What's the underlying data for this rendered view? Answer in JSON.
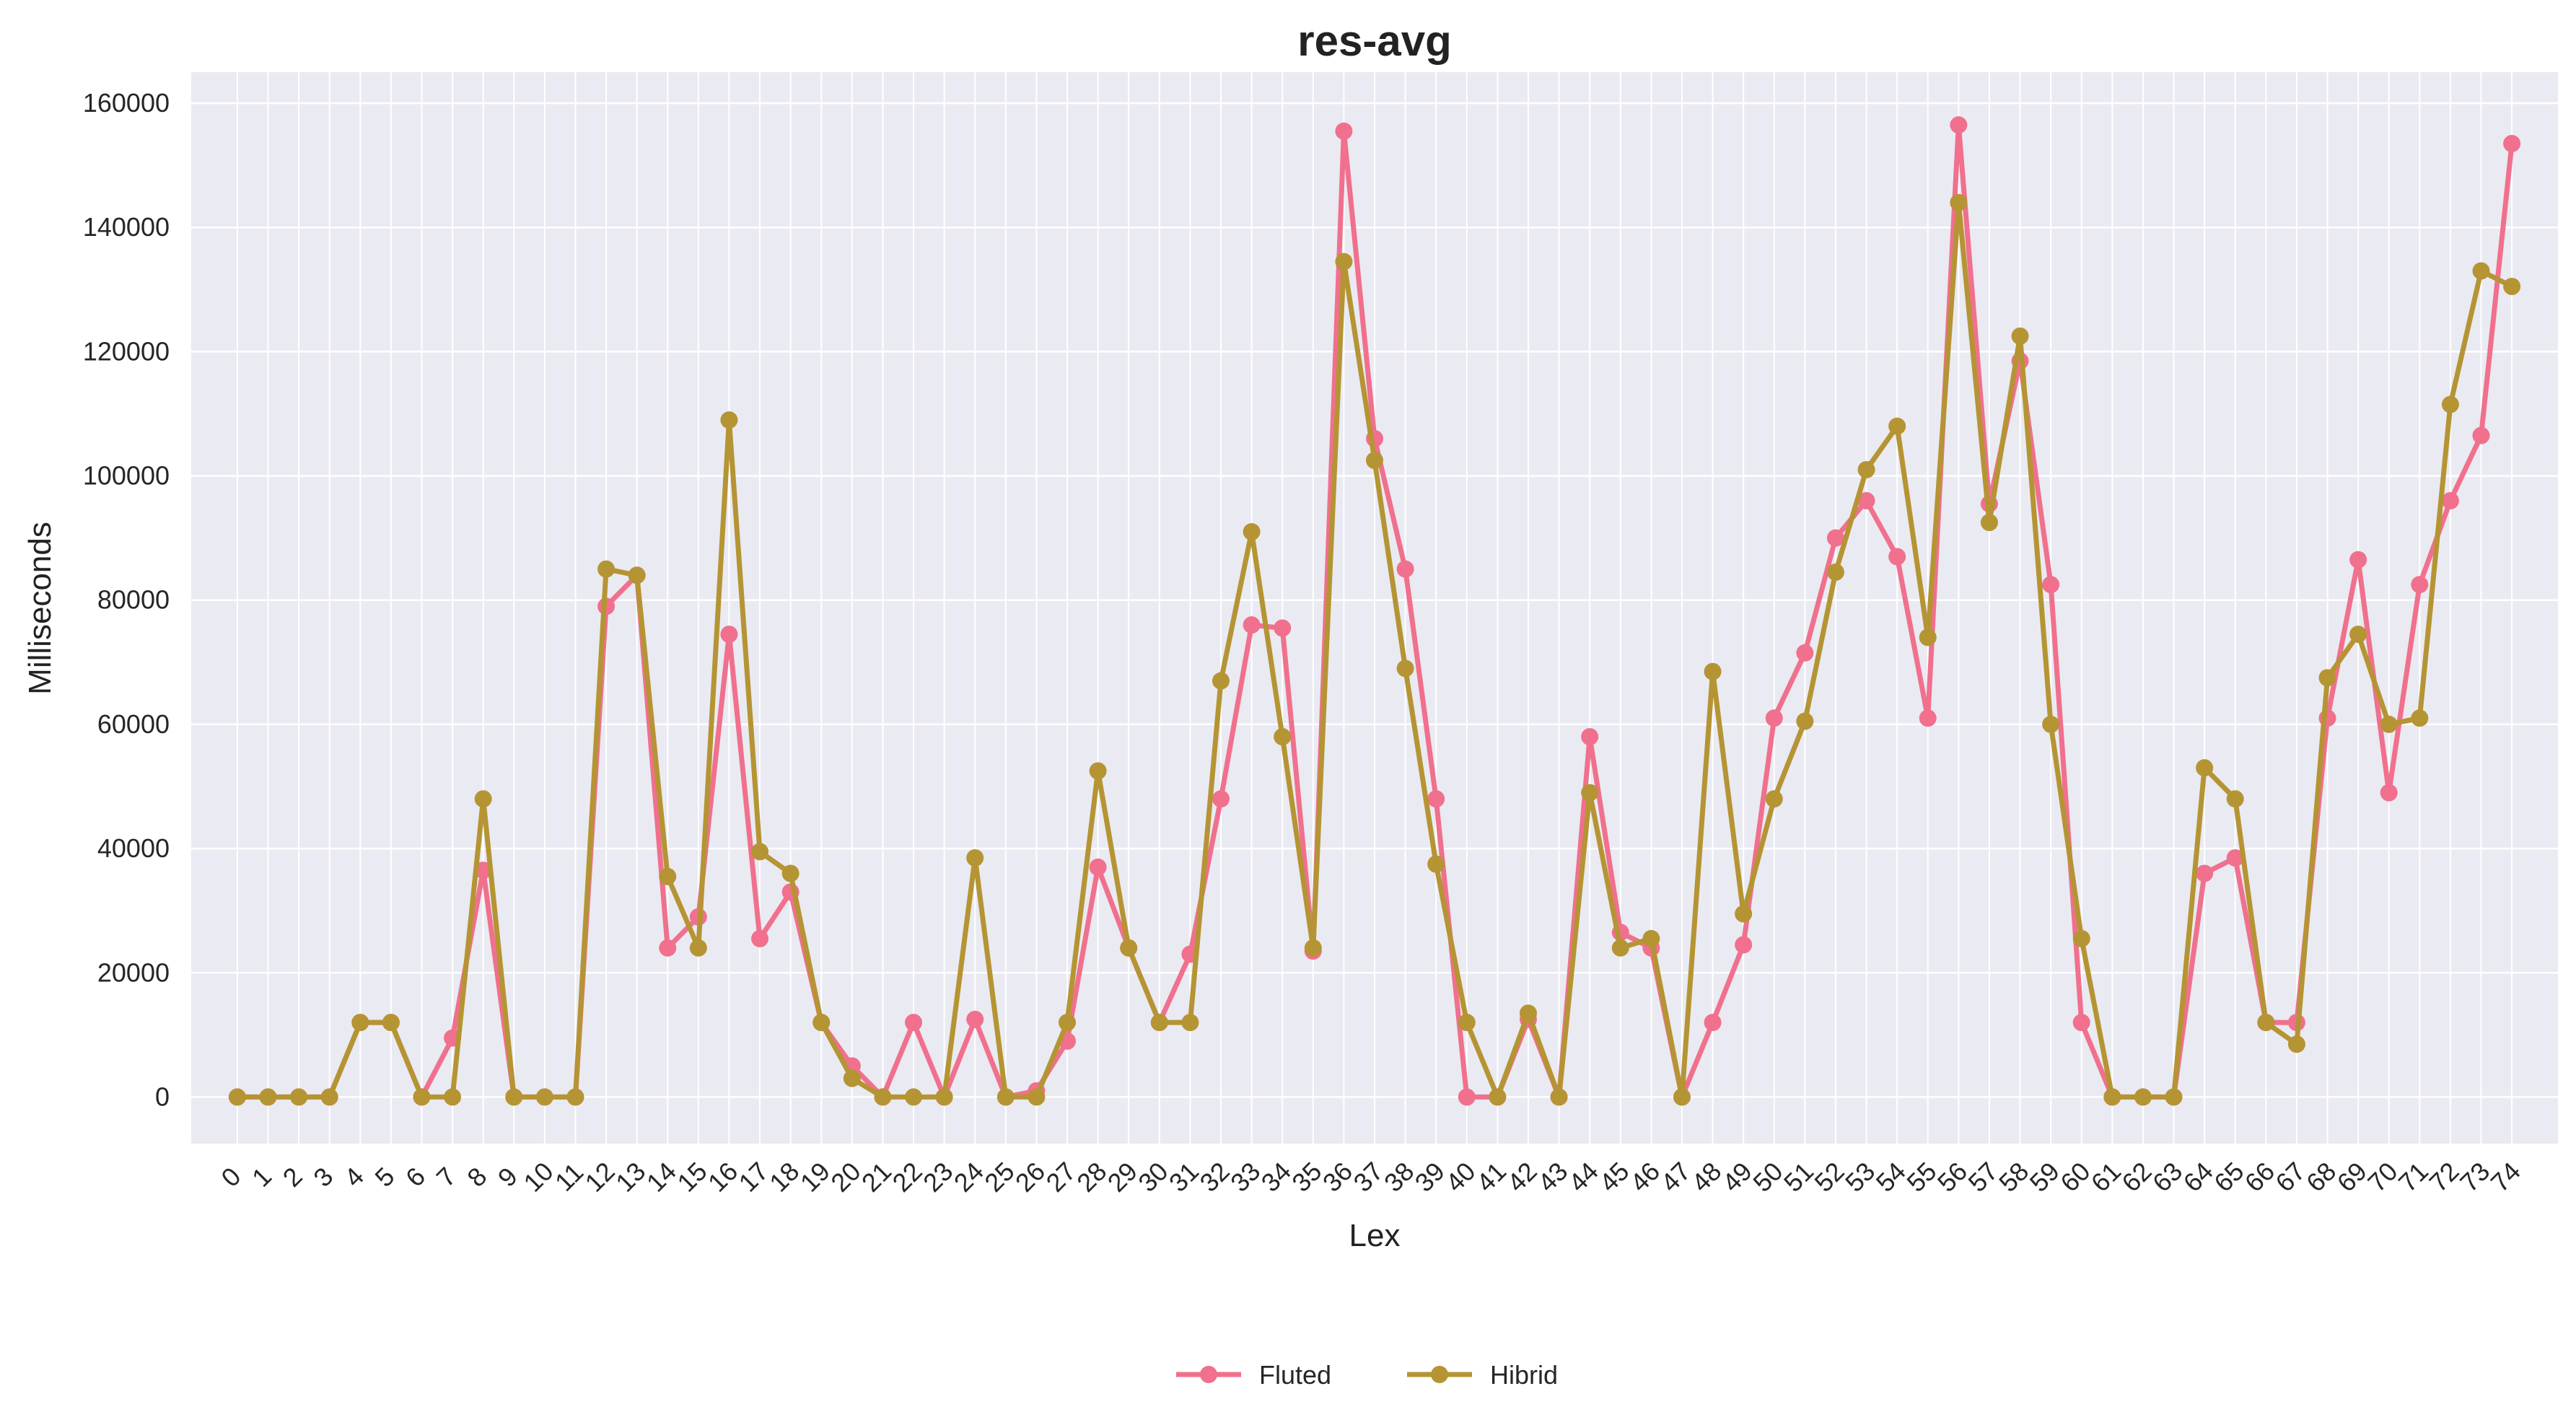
{
  "chart_data": {
    "type": "line",
    "title": "res-avg",
    "xlabel": "Lex",
    "ylabel": "Milliseconds",
    "ylim": [
      -7500,
      165000
    ],
    "xlim": [
      -1.5,
      75.5
    ],
    "yticks": [
      0,
      20000,
      40000,
      60000,
      80000,
      100000,
      120000,
      140000,
      160000
    ],
    "grid": true,
    "legend_position": "bottom-center",
    "x": [
      0,
      1,
      2,
      3,
      4,
      5,
      6,
      7,
      8,
      9,
      10,
      11,
      12,
      13,
      14,
      15,
      16,
      17,
      18,
      19,
      20,
      21,
      22,
      23,
      24,
      25,
      26,
      27,
      28,
      29,
      30,
      31,
      32,
      33,
      34,
      35,
      36,
      37,
      38,
      39,
      40,
      41,
      42,
      43,
      44,
      45,
      46,
      47,
      48,
      49,
      50,
      51,
      52,
      53,
      54,
      55,
      56,
      57,
      58,
      59,
      60,
      61,
      62,
      63,
      64,
      65,
      66,
      67,
      68,
      69,
      70,
      71,
      72,
      73,
      74
    ],
    "series": [
      {
        "name": "Fluted",
        "color": "#f0708d",
        "values": [
          0,
          0,
          0,
          0,
          12000,
          12000,
          0,
          9500,
          36500,
          0,
          0,
          0,
          79000,
          84000,
          24000,
          29000,
          74500,
          25500,
          33000,
          12000,
          5000,
          0,
          12000,
          0,
          12500,
          0,
          1000,
          9000,
          37000,
          24000,
          12000,
          23000,
          48000,
          76000,
          75500,
          23500,
          155500,
          106000,
          85000,
          48000,
          0,
          0,
          12500,
          0,
          58000,
          26500,
          24000,
          0,
          12000,
          24500,
          61000,
          71500,
          90000,
          96000,
          87000,
          61000,
          156500,
          95500,
          118500,
          82500,
          12000,
          0,
          0,
          0,
          36000,
          38500,
          12000,
          12000,
          61000,
          86500,
          49000,
          82500,
          96000,
          106500,
          153500
        ]
      },
      {
        "name": "Hibrid",
        "color": "#b59434",
        "values": [
          0,
          0,
          0,
          0,
          12000,
          12000,
          0,
          0,
          48000,
          0,
          0,
          0,
          85000,
          84000,
          35500,
          24000,
          109000,
          39500,
          36000,
          12000,
          3000,
          0,
          0,
          0,
          38500,
          0,
          0,
          12000,
          52500,
          24000,
          12000,
          12000,
          67000,
          91000,
          58000,
          24000,
          134500,
          102500,
          69000,
          37500,
          12000,
          0,
          13500,
          0,
          49000,
          24000,
          25500,
          0,
          68500,
          29500,
          48000,
          60500,
          84500,
          101000,
          108000,
          74000,
          144000,
          92500,
          122500,
          60000,
          25500,
          0,
          0,
          0,
          53000,
          48000,
          12000,
          8500,
          67500,
          74500,
          60000,
          61000,
          111500,
          133000,
          130500
        ]
      }
    ]
  }
}
